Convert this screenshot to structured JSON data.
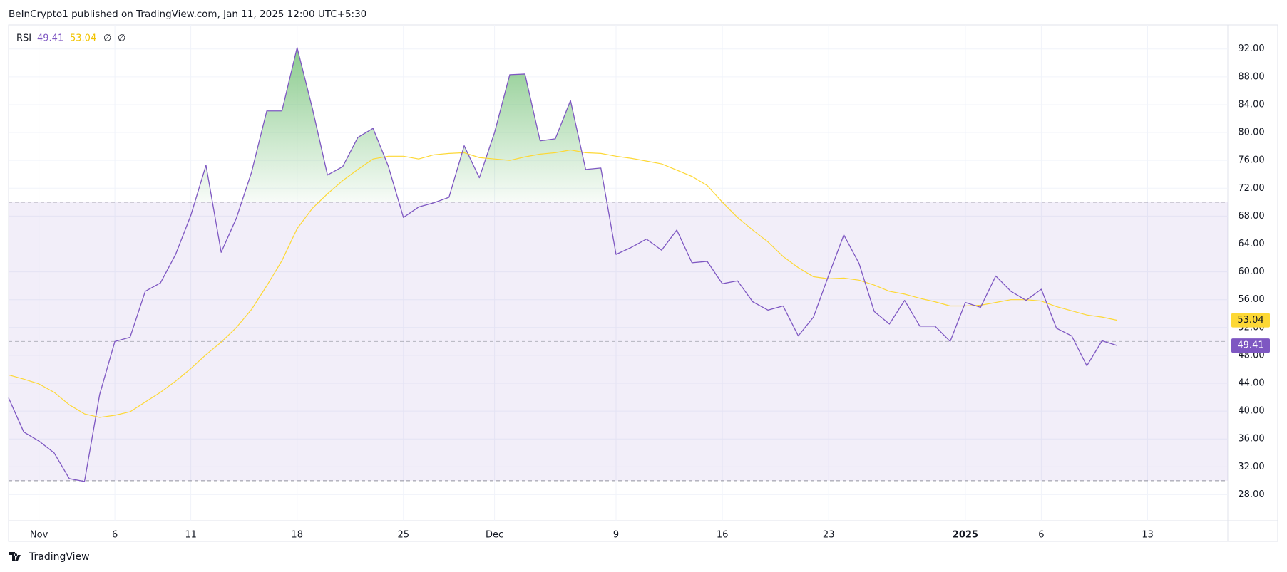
{
  "source": {
    "publisher_line": "BeInCrypto1 published on TradingView.com, Jan 11, 2025 12:00 UTC+5:30",
    "brand": "TradingView"
  },
  "chart_data": {
    "type": "line",
    "indicator_label": "RSI",
    "legend_extra": [
      "∅",
      "∅"
    ],
    "categories": [
      null,
      null,
      "Nov",
      null,
      null,
      null,
      null,
      "6",
      null,
      null,
      null,
      null,
      "11",
      null,
      null,
      null,
      null,
      null,
      null,
      "18",
      null,
      null,
      null,
      null,
      null,
      null,
      "25",
      null,
      null,
      null,
      null,
      null,
      "Dec",
      null,
      null,
      null,
      null,
      null,
      null,
      null,
      "9",
      null,
      null,
      null,
      null,
      null,
      null,
      "16",
      null,
      null,
      null,
      null,
      null,
      null,
      "23",
      null,
      null,
      null,
      null,
      null,
      null,
      null,
      null,
      "2025",
      null,
      null,
      null,
      null,
      "6",
      null,
      null,
      null,
      null,
      null,
      null,
      "13"
    ],
    "series": [
      {
        "color": "#7e57c2",
        "values": [
          41.9,
          37.0,
          35.7,
          34.0,
          30.3,
          29.9,
          42.4,
          50.0,
          50.6,
          57.2,
          58.4,
          62.5,
          68.1,
          75.3,
          62.8,
          67.7,
          74.3,
          83.1,
          83.1,
          92.2,
          83.5,
          73.9,
          75.1,
          79.3,
          80.6,
          75.2,
          67.8,
          69.3,
          69.9,
          70.7,
          78.1,
          73.5,
          80.0,
          88.3,
          88.4,
          78.8,
          79.1,
          84.6,
          74.7,
          74.9,
          62.5,
          63.5,
          64.7,
          63.1,
          66.0,
          61.3,
          61.5,
          58.3,
          58.7,
          55.7,
          54.5,
          55.1,
          50.8,
          53.5,
          59.5,
          65.3,
          61.2,
          54.3,
          52.5,
          55.9,
          52.2,
          52.2,
          50.0,
          55.6,
          54.9,
          59.4,
          57.2,
          55.9,
          57.5,
          51.9,
          50.8,
          46.5,
          50.1,
          49.41,
          null,
          null
        ]
      },
      {
        "color": "#fdd835",
        "values": [
          45.2,
          44.6,
          43.9,
          42.7,
          40.9,
          39.6,
          39.1,
          39.4,
          39.9,
          41.3,
          42.7,
          44.3,
          46.1,
          48.1,
          49.9,
          52.0,
          54.6,
          58.0,
          61.6,
          66.2,
          69.1,
          71.2,
          73.1,
          74.7,
          76.2,
          76.6,
          76.6,
          76.2,
          76.8,
          77.0,
          77.1,
          76.4,
          76.2,
          76.0,
          76.5,
          76.9,
          77.1,
          77.5,
          77.1,
          77.0,
          76.6,
          76.3,
          75.9,
          75.5,
          74.6,
          73.7,
          72.4,
          70.0,
          67.8,
          66.0,
          64.3,
          62.2,
          60.6,
          59.3,
          59.0,
          59.1,
          58.8,
          58.1,
          57.2,
          56.8,
          56.2,
          55.7,
          55.1,
          55.1,
          55.2,
          55.6,
          56.0,
          56.0,
          55.8,
          55.0,
          54.4,
          53.8,
          53.5,
          53.04,
          null,
          null
        ]
      }
    ],
    "bands": {
      "upper": 70,
      "middle": 50,
      "lower": 30,
      "fill": "#7e57c2",
      "overbought_fill": "#4caf50"
    },
    "ylim": [
      24.26,
      95.45
    ],
    "yticks": [
      {
        "value": 28,
        "label": "28.00"
      },
      {
        "value": 32,
        "label": "32.00"
      },
      {
        "value": 36,
        "label": "36.00"
      },
      {
        "value": 40,
        "label": "40.00"
      },
      {
        "value": 44,
        "label": "44.00"
      },
      {
        "value": 48,
        "label": "48.00"
      },
      {
        "value": 52,
        "label": "52.00"
      },
      {
        "value": 56,
        "label": "56.00"
      },
      {
        "value": 60,
        "label": "60.00"
      },
      {
        "value": 64,
        "label": "64.00"
      },
      {
        "value": 68,
        "label": "68.00"
      },
      {
        "value": 72,
        "label": "72.00"
      },
      {
        "value": 76,
        "label": "76.00"
      },
      {
        "value": 80,
        "label": "80.00"
      },
      {
        "value": 84,
        "label": "84.00"
      },
      {
        "value": 88,
        "label": "88.00"
      },
      {
        "value": 92,
        "label": "92.00"
      }
    ],
    "grid": true
  }
}
